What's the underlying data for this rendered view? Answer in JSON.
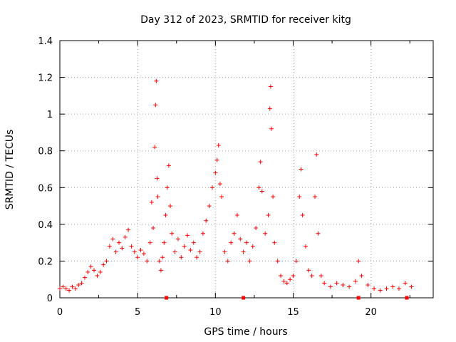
{
  "chart_data": {
    "type": "scatter",
    "title": "Day 312 of 2023, SRMTID for receiver kitg",
    "xlabel": "GPS time / hours",
    "ylabel": "SRMTID / TECUs",
    "xlim": [
      0,
      24
    ],
    "ylim": [
      0,
      1.4
    ],
    "xticks": [
      0,
      5,
      10,
      15,
      20
    ],
    "xtick_labels": [
      "0",
      "5",
      "10",
      "15",
      "20"
    ],
    "yticks": [
      0,
      0.2,
      0.4,
      0.6,
      0.8,
      1.0,
      1.2,
      1.4
    ],
    "ytick_labels": [
      "0",
      "0.2",
      "0.4",
      "0.6",
      "0.8",
      "1",
      "1.2",
      "1.4"
    ],
    "grid": true,
    "legend": "none",
    "series": [
      {
        "name": "SRMTID",
        "marker": "plus",
        "color": "#ff0000",
        "points": [
          [
            0.0,
            0.05
          ],
          [
            0.2,
            0.06
          ],
          [
            0.4,
            0.05
          ],
          [
            0.6,
            0.04
          ],
          [
            0.8,
            0.06
          ],
          [
            1.0,
            0.05
          ],
          [
            1.2,
            0.07
          ],
          [
            1.4,
            0.08
          ],
          [
            1.6,
            0.11
          ],
          [
            1.8,
            0.14
          ],
          [
            2.0,
            0.17
          ],
          [
            2.2,
            0.15
          ],
          [
            2.4,
            0.12
          ],
          [
            2.6,
            0.14
          ],
          [
            2.8,
            0.18
          ],
          [
            3.0,
            0.2
          ],
          [
            3.2,
            0.28
          ],
          [
            3.4,
            0.32
          ],
          [
            3.6,
            0.25
          ],
          [
            3.8,
            0.3
          ],
          [
            4.0,
            0.27
          ],
          [
            4.2,
            0.33
          ],
          [
            4.4,
            0.37
          ],
          [
            4.6,
            0.28
          ],
          [
            4.8,
            0.25
          ],
          [
            5.0,
            0.22
          ],
          [
            5.2,
            0.26
          ],
          [
            5.4,
            0.24
          ],
          [
            5.6,
            0.2
          ],
          [
            5.8,
            0.3
          ],
          [
            5.9,
            0.52
          ],
          [
            6.0,
            0.38
          ],
          [
            6.1,
            0.82
          ],
          [
            6.15,
            1.05
          ],
          [
            6.2,
            1.18
          ],
          [
            6.25,
            0.65
          ],
          [
            6.3,
            0.55
          ],
          [
            6.4,
            0.2
          ],
          [
            6.5,
            0.15
          ],
          [
            6.6,
            0.22
          ],
          [
            6.7,
            0.3
          ],
          [
            6.8,
            0.45
          ],
          [
            6.9,
            0.6
          ],
          [
            7.0,
            0.72
          ],
          [
            7.1,
            0.5
          ],
          [
            7.2,
            0.35
          ],
          [
            7.4,
            0.25
          ],
          [
            7.6,
            0.32
          ],
          [
            7.8,
            0.22
          ],
          [
            8.0,
            0.28
          ],
          [
            8.2,
            0.34
          ],
          [
            8.4,
            0.26
          ],
          [
            8.6,
            0.3
          ],
          [
            8.8,
            0.22
          ],
          [
            9.0,
            0.25
          ],
          [
            9.2,
            0.35
          ],
          [
            9.4,
            0.42
          ],
          [
            9.6,
            0.5
          ],
          [
            9.8,
            0.6
          ],
          [
            10.0,
            0.68
          ],
          [
            10.1,
            0.75
          ],
          [
            10.2,
            0.83
          ],
          [
            10.3,
            0.62
          ],
          [
            10.4,
            0.55
          ],
          [
            10.6,
            0.25
          ],
          [
            10.8,
            0.2
          ],
          [
            11.0,
            0.3
          ],
          [
            11.2,
            0.35
          ],
          [
            11.4,
            0.45
          ],
          [
            11.6,
            0.32
          ],
          [
            11.8,
            0.25
          ],
          [
            12.0,
            0.3
          ],
          [
            12.2,
            0.2
          ],
          [
            12.4,
            0.28
          ],
          [
            12.6,
            0.38
          ],
          [
            12.8,
            0.6
          ],
          [
            12.9,
            0.74
          ],
          [
            13.0,
            0.58
          ],
          [
            13.2,
            0.35
          ],
          [
            13.4,
            0.45
          ],
          [
            13.5,
            1.03
          ],
          [
            13.55,
            1.15
          ],
          [
            13.6,
            0.92
          ],
          [
            13.7,
            0.55
          ],
          [
            13.8,
            0.3
          ],
          [
            14.0,
            0.2
          ],
          [
            14.2,
            0.12
          ],
          [
            14.4,
            0.09
          ],
          [
            14.6,
            0.08
          ],
          [
            14.8,
            0.1
          ],
          [
            15.0,
            0.12
          ],
          [
            15.2,
            0.2
          ],
          [
            15.4,
            0.55
          ],
          [
            15.5,
            0.7
          ],
          [
            15.6,
            0.45
          ],
          [
            15.8,
            0.28
          ],
          [
            16.0,
            0.15
          ],
          [
            16.2,
            0.12
          ],
          [
            16.4,
            0.55
          ],
          [
            16.5,
            0.78
          ],
          [
            16.6,
            0.35
          ],
          [
            16.8,
            0.12
          ],
          [
            17.0,
            0.08
          ],
          [
            17.4,
            0.06
          ],
          [
            17.8,
            0.08
          ],
          [
            18.2,
            0.07
          ],
          [
            18.6,
            0.06
          ],
          [
            19.0,
            0.09
          ],
          [
            19.2,
            0.2
          ],
          [
            19.4,
            0.12
          ],
          [
            19.8,
            0.07
          ],
          [
            20.2,
            0.05
          ],
          [
            20.6,
            0.04
          ],
          [
            21.0,
            0.05
          ],
          [
            21.4,
            0.06
          ],
          [
            21.8,
            0.05
          ],
          [
            22.2,
            0.08
          ],
          [
            22.6,
            0.06
          ]
        ]
      },
      {
        "name": "SRMTID (zero marks)",
        "marker": "square",
        "color": "#ff0000",
        "points": [
          [
            6.85,
            0.0
          ],
          [
            11.8,
            0.0
          ],
          [
            19.2,
            0.0
          ],
          [
            22.3,
            0.0
          ]
        ]
      }
    ]
  }
}
